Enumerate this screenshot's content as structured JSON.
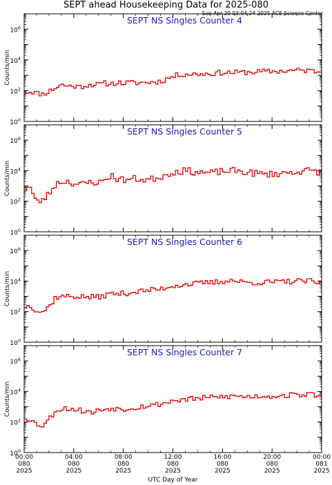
{
  "title": "SEPT ahead Housekeeping Data for 2025-080",
  "timestamp": "Sun Apr 20 03:04:24 2025 ACE Science Center",
  "xlabel": "UTC Day of Year",
  "colors": {
    "trace": "#dd0000",
    "panel_title": "#1a1ab0",
    "axes": "#000000"
  },
  "chart_data": [
    {
      "type": "line",
      "title": "SEPT NS Singles Counter 4",
      "ylabel": "Counts/min",
      "yscale": "log",
      "ylim": [
        1,
        10000000
      ],
      "xlim": [
        0,
        24
      ],
      "yticks": [
        1,
        100,
        10000,
        1000000
      ],
      "xticks": [
        "00:00",
        "04:00",
        "08:00",
        "12:00",
        "16:00",
        "20:00",
        "00:00"
      ],
      "xtick_days": [
        "080",
        "080",
        "080",
        "080",
        "080",
        "080",
        "081"
      ],
      "xtick_years": [
        "2025",
        "2025",
        "2025",
        "2025",
        "2025",
        "2025",
        "2025"
      ],
      "keypoints": [
        [
          0,
          80
        ],
        [
          0.6,
          90
        ],
        [
          1,
          70
        ],
        [
          1.5,
          60
        ],
        [
          2,
          90
        ],
        [
          2.5,
          150
        ],
        [
          3,
          250
        ],
        [
          3.5,
          200
        ],
        [
          4,
          200
        ],
        [
          4.5,
          180
        ],
        [
          5,
          220
        ],
        [
          5.5,
          260
        ],
        [
          6,
          240
        ],
        [
          6.5,
          300
        ],
        [
          7,
          280
        ],
        [
          7.5,
          350
        ],
        [
          8,
          300
        ],
        [
          8.5,
          330
        ],
        [
          9,
          320
        ],
        [
          10,
          350
        ],
        [
          11,
          400
        ],
        [
          11.5,
          600
        ],
        [
          12,
          800
        ],
        [
          12.5,
          1100
        ],
        [
          13,
          1200
        ],
        [
          14,
          1200
        ],
        [
          15,
          1300
        ],
        [
          16,
          1500
        ],
        [
          17,
          1500
        ],
        [
          18,
          1600
        ],
        [
          19,
          1700
        ],
        [
          20,
          1800
        ],
        [
          21,
          1900
        ],
        [
          22,
          2100
        ],
        [
          23,
          2000
        ],
        [
          24,
          1700
        ]
      ],
      "noise": 0.35,
      "seed": 11
    },
    {
      "type": "line",
      "title": "SEPT NS Singles Counter 5",
      "ylabel": "Counts/min",
      "yscale": "log",
      "ylim": [
        1,
        10000000
      ],
      "xlim": [
        0,
        24
      ],
      "yticks": [
        1,
        100,
        10000,
        1000000
      ],
      "xticks": [
        "00:00",
        "04:00",
        "08:00",
        "12:00",
        "16:00",
        "20:00",
        "00:00"
      ],
      "xtick_days": [
        "080",
        "080",
        "080",
        "080",
        "080",
        "080",
        "081"
      ],
      "xtick_years": [
        "2025",
        "2025",
        "2025",
        "2025",
        "2025",
        "2025",
        "2025"
      ],
      "keypoints": [
        [
          0,
          500
        ],
        [
          0.4,
          1200
        ],
        [
          0.8,
          200
        ],
        [
          1,
          80
        ],
        [
          1.5,
          120
        ],
        [
          2,
          300
        ],
        [
          2.5,
          1200
        ],
        [
          3,
          2000
        ],
        [
          3.5,
          2000
        ],
        [
          4,
          1500
        ],
        [
          4.5,
          1200
        ],
        [
          5,
          1500
        ],
        [
          5.5,
          2000
        ],
        [
          6,
          1500
        ],
        [
          6.5,
          2500
        ],
        [
          7,
          5000
        ],
        [
          7.5,
          3000
        ],
        [
          8,
          2500
        ],
        [
          9,
          3000
        ],
        [
          10,
          2500
        ],
        [
          11,
          4000
        ],
        [
          12,
          8000
        ],
        [
          13,
          10000
        ],
        [
          14,
          8000
        ],
        [
          15,
          7000
        ],
        [
          16,
          9000
        ],
        [
          17,
          10000
        ],
        [
          18,
          8000
        ],
        [
          19,
          6000
        ],
        [
          20,
          6000
        ],
        [
          21,
          7000
        ],
        [
          22,
          9000
        ],
        [
          23,
          10000
        ],
        [
          24,
          8000
        ]
      ],
      "noise": 0.45,
      "seed": 23
    },
    {
      "type": "line",
      "title": "SEPT NS Singles Counter 6",
      "ylabel": "Counts/min",
      "yscale": "log",
      "ylim": [
        1,
        10000000
      ],
      "xlim": [
        0,
        24
      ],
      "yticks": [
        1,
        100,
        10000,
        1000000
      ],
      "xticks": [
        "00:00",
        "04:00",
        "08:00",
        "12:00",
        "16:00",
        "20:00",
        "00:00"
      ],
      "xtick_days": [
        "080",
        "080",
        "080",
        "080",
        "080",
        "080",
        "081"
      ],
      "xtick_years": [
        "2025",
        "2025",
        "2025",
        "2025",
        "2025",
        "2025",
        "2025"
      ],
      "keypoints": [
        [
          0,
          200
        ],
        [
          0.5,
          250
        ],
        [
          1,
          120
        ],
        [
          1.5,
          100
        ],
        [
          2,
          200
        ],
        [
          2.5,
          800
        ],
        [
          3,
          1000
        ],
        [
          4,
          1000
        ],
        [
          5,
          900
        ],
        [
          6,
          900
        ],
        [
          7,
          1500
        ],
        [
          8,
          1500
        ],
        [
          9,
          2000
        ],
        [
          10,
          2500
        ],
        [
          11,
          3000
        ],
        [
          12,
          5000
        ],
        [
          13,
          6000
        ],
        [
          14,
          7000
        ],
        [
          15,
          8000
        ],
        [
          16,
          9000
        ],
        [
          16.5,
          12000
        ],
        [
          17,
          10000
        ],
        [
          18,
          8000
        ],
        [
          19,
          8000
        ],
        [
          20,
          8500
        ],
        [
          21,
          9000
        ],
        [
          22,
          10000
        ],
        [
          23,
          10000
        ],
        [
          24,
          7000
        ]
      ],
      "noise": 0.35,
      "seed": 37
    },
    {
      "type": "line",
      "title": "SEPT NS Singles Counter 7",
      "ylabel": "Counts/min",
      "yscale": "log",
      "ylim": [
        1,
        10000000
      ],
      "xlim": [
        0,
        24
      ],
      "yticks": [
        1,
        100,
        10000,
        1000000
      ],
      "xticks": [
        "00:00",
        "04:00",
        "08:00",
        "12:00",
        "16:00",
        "20:00",
        "00:00"
      ],
      "xtick_days": [
        "080",
        "080",
        "080",
        "080",
        "080",
        "080",
        "081"
      ],
      "xtick_years": [
        "2025",
        "2025",
        "2025",
        "2025",
        "2025",
        "2025",
        "2025"
      ],
      "keypoints": [
        [
          0,
          200
        ],
        [
          0.5,
          150
        ],
        [
          1,
          70
        ],
        [
          1.5,
          60
        ],
        [
          2,
          150
        ],
        [
          2.5,
          500
        ],
        [
          3,
          800
        ],
        [
          4,
          700
        ],
        [
          5,
          500
        ],
        [
          5.5,
          400
        ],
        [
          6,
          600
        ],
        [
          7,
          800
        ],
        [
          8,
          700
        ],
        [
          9,
          900
        ],
        [
          10,
          1200
        ],
        [
          11,
          1500
        ],
        [
          12,
          2500
        ],
        [
          13,
          3000
        ],
        [
          14,
          3500
        ],
        [
          15,
          4000
        ],
        [
          16,
          4500
        ],
        [
          17,
          5000
        ],
        [
          18,
          4500
        ],
        [
          19,
          5000
        ],
        [
          20,
          5000
        ],
        [
          21,
          5500
        ],
        [
          22,
          6000
        ],
        [
          23,
          6500
        ],
        [
          24,
          5000
        ]
      ],
      "noise": 0.35,
      "seed": 53
    }
  ]
}
